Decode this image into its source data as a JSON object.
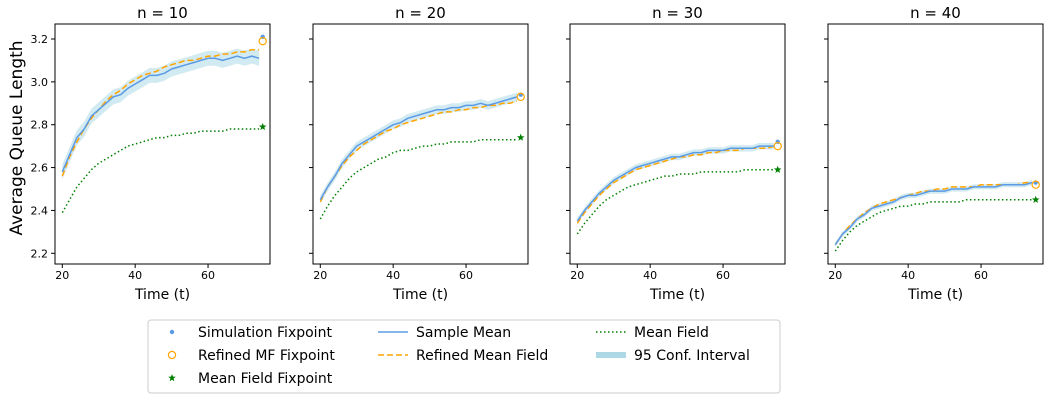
{
  "figure": {
    "ylabel": "Average Queue Length",
    "xlabel": "Time (t)"
  },
  "colors": {
    "simulation": "#5b9be6",
    "refined": "#ffa500",
    "mean_field": "#008000",
    "ci": "#add8e6"
  },
  "legend": {
    "placement": "bottom-center",
    "entries": [
      {
        "label": "Simulation Fixpoint",
        "marker": "dot"
      },
      {
        "label": "Refined MF Fixpoint",
        "marker": "circle"
      },
      {
        "label": "Mean Field Fixpoint",
        "marker": "star"
      },
      {
        "label": "Sample Mean",
        "marker": "solid-line"
      },
      {
        "label": "Refined Mean Field",
        "marker": "dashed-line"
      },
      {
        "label": "Mean Field",
        "marker": "dotted-line"
      },
      {
        "label": "95 Conf. Interval",
        "marker": "band"
      }
    ]
  },
  "chart_data": [
    {
      "type": "line",
      "title": "n = 10",
      "xlabel": "Time (t)",
      "ylabel": "Average Queue Length",
      "xlim": [
        18,
        77
      ],
      "ylim": [
        2.15,
        3.27
      ],
      "xticks": [
        20,
        40,
        60
      ],
      "yticks": [
        "2.2",
        "2.4",
        "2.6",
        "2.8",
        "3.0",
        "3.2"
      ],
      "series": [
        {
          "name": "Sample Mean",
          "style": "solid",
          "x": [
            20,
            22,
            24,
            26,
            28,
            30,
            32,
            34,
            36,
            38,
            40,
            42,
            44,
            46,
            48,
            50,
            52,
            54,
            56,
            58,
            60,
            62,
            64,
            66,
            68,
            70,
            72,
            74
          ],
          "y": [
            2.58,
            2.66,
            2.74,
            2.78,
            2.84,
            2.87,
            2.9,
            2.93,
            2.94,
            2.97,
            2.99,
            3.01,
            3.03,
            3.03,
            3.04,
            3.06,
            3.07,
            3.08,
            3.09,
            3.1,
            3.11,
            3.11,
            3.1,
            3.11,
            3.12,
            3.11,
            3.12,
            3.11
          ]
        },
        {
          "name": "Refined Mean Field",
          "style": "dashed",
          "x": [
            20,
            22,
            24,
            26,
            28,
            30,
            32,
            34,
            36,
            38,
            40,
            42,
            44,
            46,
            48,
            50,
            52,
            54,
            56,
            58,
            60,
            62,
            64,
            66,
            68,
            70,
            72,
            74
          ],
          "y": [
            2.56,
            2.65,
            2.72,
            2.78,
            2.83,
            2.87,
            2.91,
            2.94,
            2.96,
            2.99,
            3.01,
            3.03,
            3.04,
            3.05,
            3.07,
            3.08,
            3.09,
            3.1,
            3.1,
            3.11,
            3.12,
            3.12,
            3.13,
            3.13,
            3.14,
            3.14,
            3.15,
            3.15
          ]
        },
        {
          "name": "Mean Field",
          "style": "dotted",
          "x": [
            20,
            22,
            24,
            26,
            28,
            30,
            32,
            34,
            36,
            38,
            40,
            42,
            44,
            46,
            48,
            50,
            52,
            54,
            56,
            58,
            60,
            62,
            64,
            66,
            68,
            70,
            72,
            74
          ],
          "y": [
            2.39,
            2.45,
            2.51,
            2.55,
            2.59,
            2.62,
            2.64,
            2.66,
            2.68,
            2.7,
            2.71,
            2.72,
            2.73,
            2.74,
            2.74,
            2.75,
            2.75,
            2.76,
            2.76,
            2.77,
            2.77,
            2.77,
            2.77,
            2.78,
            2.78,
            2.78,
            2.78,
            2.78
          ]
        }
      ],
      "ci_halfwidth": 0.035,
      "fixpoints": {
        "t": 75,
        "simulation": 3.21,
        "refined": 3.19,
        "mean_field": 2.79
      }
    },
    {
      "type": "line",
      "title": "n = 20",
      "xlabel": "Time (t)",
      "xlim": [
        18,
        77
      ],
      "ylim": [
        2.15,
        3.27
      ],
      "xticks": [
        20,
        40,
        60
      ],
      "series": [
        {
          "name": "Sample Mean",
          "style": "solid",
          "x": [
            20,
            22,
            24,
            26,
            28,
            30,
            32,
            34,
            36,
            38,
            40,
            42,
            44,
            46,
            48,
            50,
            52,
            54,
            56,
            58,
            60,
            62,
            64,
            66,
            68,
            70,
            72,
            74
          ],
          "y": [
            2.45,
            2.51,
            2.56,
            2.62,
            2.66,
            2.7,
            2.72,
            2.74,
            2.76,
            2.78,
            2.8,
            2.81,
            2.83,
            2.84,
            2.85,
            2.86,
            2.87,
            2.87,
            2.88,
            2.88,
            2.89,
            2.89,
            2.9,
            2.89,
            2.9,
            2.91,
            2.92,
            2.93
          ]
        },
        {
          "name": "Refined Mean Field",
          "style": "dashed",
          "x": [
            20,
            22,
            24,
            26,
            28,
            30,
            32,
            34,
            36,
            38,
            40,
            42,
            44,
            46,
            48,
            50,
            52,
            54,
            56,
            58,
            60,
            62,
            64,
            66,
            68,
            70,
            72,
            74
          ],
          "y": [
            2.44,
            2.51,
            2.56,
            2.61,
            2.65,
            2.68,
            2.71,
            2.73,
            2.75,
            2.77,
            2.78,
            2.8,
            2.81,
            2.82,
            2.83,
            2.84,
            2.85,
            2.86,
            2.86,
            2.87,
            2.87,
            2.88,
            2.88,
            2.89,
            2.89,
            2.9,
            2.9,
            2.91
          ]
        },
        {
          "name": "Mean Field",
          "style": "dotted",
          "x": [
            20,
            22,
            24,
            26,
            28,
            30,
            32,
            34,
            36,
            38,
            40,
            42,
            44,
            46,
            48,
            50,
            52,
            54,
            56,
            58,
            60,
            62,
            64,
            66,
            68,
            70,
            72,
            74
          ],
          "y": [
            2.36,
            2.42,
            2.47,
            2.51,
            2.55,
            2.58,
            2.6,
            2.62,
            2.64,
            2.65,
            2.67,
            2.68,
            2.68,
            2.69,
            2.7,
            2.7,
            2.71,
            2.71,
            2.72,
            2.72,
            2.72,
            2.72,
            2.73,
            2.73,
            2.73,
            2.73,
            2.73,
            2.73
          ]
        }
      ],
      "ci_halfwidth": 0.02,
      "fixpoints": {
        "t": 75,
        "simulation": 2.94,
        "refined": 2.93,
        "mean_field": 2.74
      }
    },
    {
      "type": "line",
      "title": "n = 30",
      "xlabel": "Time (t)",
      "xlim": [
        18,
        77
      ],
      "ylim": [
        2.15,
        3.27
      ],
      "xticks": [
        20,
        40,
        60
      ],
      "series": [
        {
          "name": "Sample Mean",
          "style": "solid",
          "x": [
            20,
            22,
            24,
            26,
            28,
            30,
            32,
            34,
            36,
            38,
            40,
            42,
            44,
            46,
            48,
            50,
            52,
            54,
            56,
            58,
            60,
            62,
            64,
            66,
            68,
            70,
            72,
            74
          ],
          "y": [
            2.35,
            2.4,
            2.44,
            2.48,
            2.51,
            2.54,
            2.56,
            2.58,
            2.6,
            2.61,
            2.62,
            2.63,
            2.64,
            2.65,
            2.65,
            2.66,
            2.67,
            2.67,
            2.68,
            2.68,
            2.68,
            2.69,
            2.69,
            2.69,
            2.69,
            2.7,
            2.7,
            2.7
          ]
        },
        {
          "name": "Refined Mean Field",
          "style": "dashed",
          "x": [
            20,
            22,
            24,
            26,
            28,
            30,
            32,
            34,
            36,
            38,
            40,
            42,
            44,
            46,
            48,
            50,
            52,
            54,
            56,
            58,
            60,
            62,
            64,
            66,
            68,
            70,
            72,
            74
          ],
          "y": [
            2.34,
            2.39,
            2.43,
            2.47,
            2.5,
            2.53,
            2.55,
            2.57,
            2.59,
            2.6,
            2.61,
            2.62,
            2.63,
            2.64,
            2.65,
            2.65,
            2.66,
            2.66,
            2.67,
            2.67,
            2.68,
            2.68,
            2.68,
            2.69,
            2.69,
            2.69,
            2.69,
            2.7
          ]
        },
        {
          "name": "Mean Field",
          "style": "dotted",
          "x": [
            20,
            22,
            24,
            26,
            28,
            30,
            32,
            34,
            36,
            38,
            40,
            42,
            44,
            46,
            48,
            50,
            52,
            54,
            56,
            58,
            60,
            62,
            64,
            66,
            68,
            70,
            72,
            74
          ],
          "y": [
            2.29,
            2.34,
            2.38,
            2.42,
            2.45,
            2.47,
            2.49,
            2.51,
            2.52,
            2.53,
            2.54,
            2.55,
            2.56,
            2.56,
            2.57,
            2.57,
            2.57,
            2.58,
            2.58,
            2.58,
            2.58,
            2.58,
            2.58,
            2.59,
            2.59,
            2.59,
            2.59,
            2.59
          ]
        }
      ],
      "ci_halfwidth": 0.015,
      "fixpoints": {
        "t": 75,
        "simulation": 2.72,
        "refined": 2.7,
        "mean_field": 2.59
      }
    },
    {
      "type": "line",
      "title": "n = 40",
      "xlabel": "Time (t)",
      "xlim": [
        18,
        77
      ],
      "ylim": [
        2.15,
        3.27
      ],
      "xticks": [
        20,
        40,
        60
      ],
      "series": [
        {
          "name": "Sample Mean",
          "style": "solid",
          "x": [
            20,
            22,
            24,
            26,
            28,
            30,
            32,
            34,
            36,
            38,
            40,
            42,
            44,
            46,
            48,
            50,
            52,
            54,
            56,
            58,
            60,
            62,
            64,
            66,
            68,
            70,
            72,
            74
          ],
          "y": [
            2.24,
            2.29,
            2.32,
            2.36,
            2.38,
            2.41,
            2.42,
            2.43,
            2.44,
            2.46,
            2.47,
            2.47,
            2.48,
            2.49,
            2.49,
            2.49,
            2.5,
            2.5,
            2.5,
            2.51,
            2.51,
            2.51,
            2.51,
            2.52,
            2.52,
            2.52,
            2.52,
            2.53
          ]
        },
        {
          "name": "Refined Mean Field",
          "style": "dashed",
          "x": [
            20,
            22,
            24,
            26,
            28,
            30,
            32,
            34,
            36,
            38,
            40,
            42,
            44,
            46,
            48,
            50,
            52,
            54,
            56,
            58,
            60,
            62,
            64,
            66,
            68,
            70,
            72,
            74
          ],
          "y": [
            2.24,
            2.29,
            2.33,
            2.36,
            2.39,
            2.41,
            2.43,
            2.44,
            2.45,
            2.46,
            2.47,
            2.48,
            2.49,
            2.49,
            2.5,
            2.5,
            2.51,
            2.51,
            2.51,
            2.51,
            2.52,
            2.52,
            2.52,
            2.52,
            2.52,
            2.52,
            2.53,
            2.53
          ]
        },
        {
          "name": "Mean Field",
          "style": "dotted",
          "x": [
            20,
            22,
            24,
            26,
            28,
            30,
            32,
            34,
            36,
            38,
            40,
            42,
            44,
            46,
            48,
            50,
            52,
            54,
            56,
            58,
            60,
            62,
            64,
            66,
            68,
            70,
            72,
            74
          ],
          "y": [
            2.21,
            2.26,
            2.3,
            2.33,
            2.35,
            2.37,
            2.39,
            2.4,
            2.41,
            2.42,
            2.42,
            2.43,
            2.43,
            2.44,
            2.44,
            2.44,
            2.44,
            2.44,
            2.45,
            2.45,
            2.45,
            2.45,
            2.45,
            2.45,
            2.45,
            2.45,
            2.45,
            2.45
          ]
        }
      ],
      "ci_halfwidth": 0.012,
      "fixpoints": {
        "t": 75,
        "simulation": 2.53,
        "refined": 2.52,
        "mean_field": 2.45
      }
    }
  ]
}
